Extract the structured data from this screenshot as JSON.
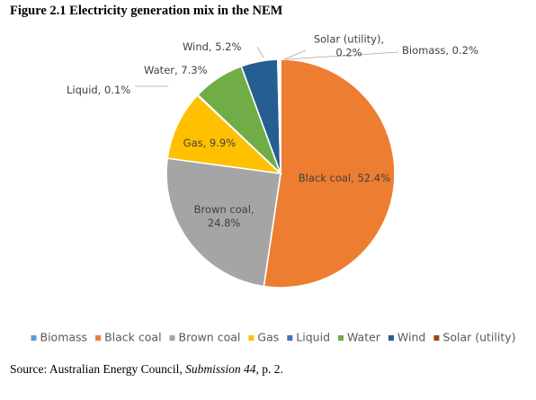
{
  "figure": {
    "title": "Figure 2.1 Electricity generation mix in the NEM"
  },
  "chart_data": {
    "type": "pie",
    "start_angle_deg": 0,
    "direction": "clockwise",
    "slices": [
      {
        "name": "Black coal",
        "value": 52.4,
        "color": "#ED7D31",
        "label_lines": [
          "Black coal, 52.4%"
        ],
        "label_pos": "inside"
      },
      {
        "name": "Brown coal",
        "value": 24.8,
        "color": "#A5A5A5",
        "label_lines": [
          "Brown coal,",
          "24.8%"
        ],
        "label_pos": "inside"
      },
      {
        "name": "Gas",
        "value": 9.9,
        "color": "#FFC000",
        "label_lines": [
          "Gas, 9.9%"
        ],
        "label_pos": "inside"
      },
      {
        "name": "Liquid",
        "value": 0.1,
        "color": "#4472C4",
        "label_lines": [
          "Liquid, 0.1%"
        ],
        "label_pos": "outside"
      },
      {
        "name": "Water",
        "value": 7.3,
        "color": "#70AD47",
        "label_lines": [
          "Water, 7.3%"
        ],
        "label_pos": "outside"
      },
      {
        "name": "Wind",
        "value": 5.2,
        "color": "#255E91",
        "label_lines": [
          "Wind, 5.2%"
        ],
        "label_pos": "outside"
      },
      {
        "name": "Solar (utility)",
        "value": 0.2,
        "color": "#9E480E",
        "label_lines": [
          "Solar (utility),",
          "0.2%"
        ],
        "label_pos": "outside"
      },
      {
        "name": "Biomass",
        "value": 0.2,
        "color": "#5B9BD5",
        "label_lines": [
          "Biomass, 0.2%"
        ],
        "label_pos": "outside"
      }
    ],
    "legend": {
      "position": "bottom",
      "items": [
        {
          "label": "Biomass",
          "color": "#5B9BD5"
        },
        {
          "label": "Black coal",
          "color": "#ED7D31"
        },
        {
          "label": "Brown coal",
          "color": "#A5A5A5"
        },
        {
          "label": "Gas",
          "color": "#FFC000"
        },
        {
          "label": "Liquid",
          "color": "#4472C4"
        },
        {
          "label": "Water",
          "color": "#70AD47"
        },
        {
          "label": "Wind",
          "color": "#255E91"
        },
        {
          "label": "Solar (utility)",
          "color": "#9E480E"
        }
      ]
    }
  },
  "source": {
    "prefix": "Source: Australian Energy Council, ",
    "italic": "Submission 44",
    "suffix": ", p. 2."
  }
}
